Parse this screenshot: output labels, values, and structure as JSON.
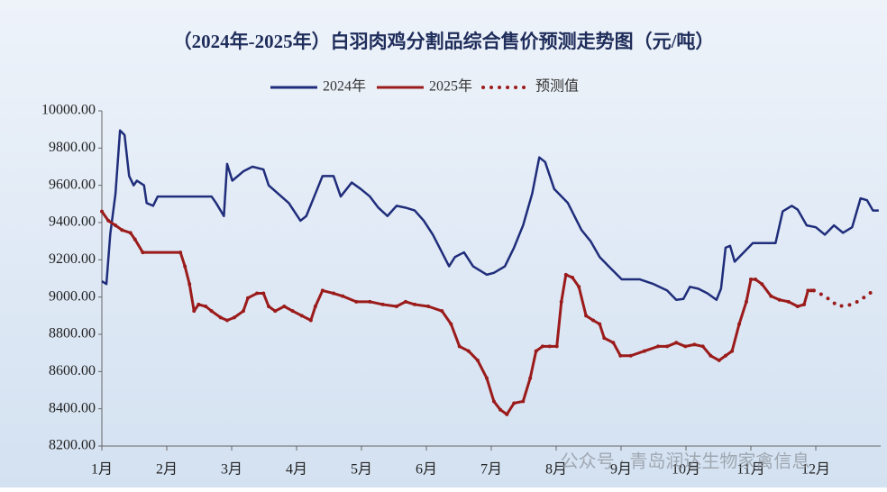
{
  "chart_data": {
    "type": "line",
    "title": "（2024年-2025年）白羽肉鸡分割品综合售价预测走势图（元/吨）",
    "watermark": "公众号 · 青岛润达生物家禽信息",
    "xlim": [
      1,
      13
    ],
    "xticks": [
      {
        "value": 1,
        "label": "1月"
      },
      {
        "value": 2,
        "label": "2月"
      },
      {
        "value": 3,
        "label": "3月"
      },
      {
        "value": 4,
        "label": "4月"
      },
      {
        "value": 5,
        "label": "5月"
      },
      {
        "value": 6,
        "label": "6月"
      },
      {
        "value": 7,
        "label": "7月"
      },
      {
        "value": 8,
        "label": "8月"
      },
      {
        "value": 9,
        "label": "9月"
      },
      {
        "value": 10,
        "label": "10月"
      },
      {
        "value": 11,
        "label": "11月"
      },
      {
        "value": 12,
        "label": "12月"
      }
    ],
    "ylim": [
      8200,
      10000
    ],
    "yticks": [
      {
        "value": 8200,
        "label": "8200.00"
      },
      {
        "value": 8400,
        "label": "8400.00"
      },
      {
        "value": 8600,
        "label": "8600.00"
      },
      {
        "value": 8800,
        "label": "8800.00"
      },
      {
        "value": 9000,
        "label": "9000.00"
      },
      {
        "value": 9200,
        "label": "9200.00"
      },
      {
        "value": 9400,
        "label": "9400.00"
      },
      {
        "value": 9600,
        "label": "9600.00"
      },
      {
        "value": 9800,
        "label": "9800.00"
      },
      {
        "value": 10000,
        "label": "10000.00"
      }
    ],
    "legend": "top",
    "series": [
      {
        "name": "2024年",
        "color": "#1f2d7b",
        "style": "solid",
        "x": [
          1.0,
          1.07,
          1.13,
          1.21,
          1.28,
          1.35,
          1.42,
          1.49,
          1.54,
          1.65,
          1.69,
          1.79,
          1.86,
          2.69,
          2.76,
          2.88,
          2.93,
          3.01,
          3.18,
          3.32,
          3.49,
          3.57,
          3.88,
          4.06,
          4.15,
          4.29,
          4.4,
          4.57,
          4.68,
          4.85,
          4.99,
          5.13,
          5.26,
          5.4,
          5.54,
          5.68,
          5.82,
          5.96,
          6.1,
          6.24,
          6.35,
          6.44,
          6.58,
          6.72,
          6.93,
          7.04,
          7.21,
          7.35,
          7.49,
          7.63,
          7.74,
          7.83,
          7.97,
          8.18,
          8.39,
          8.53,
          8.67,
          8.81,
          9.01,
          9.29,
          9.5,
          9.71,
          9.85,
          9.96,
          10.06,
          10.19,
          10.33,
          10.47,
          10.54,
          10.61,
          10.68,
          10.75,
          10.89,
          11.03,
          11.17,
          11.38,
          11.49,
          11.63,
          11.72,
          11.86,
          12.0,
          12.14,
          12.28,
          12.42,
          12.56,
          12.69,
          12.79,
          12.88,
          12.97
        ],
        "values": [
          9085,
          9070,
          9340,
          9555,
          9895,
          9870,
          9650,
          9600,
          9625,
          9600,
          9505,
          9490,
          9540,
          9540,
          9505,
          9435,
          9715,
          9625,
          9675,
          9700,
          9685,
          9600,
          9505,
          9410,
          9435,
          9555,
          9650,
          9650,
          9540,
          9615,
          9580,
          9540,
          9480,
          9435,
          9490,
          9480,
          9465,
          9410,
          9335,
          9240,
          9165,
          9215,
          9240,
          9165,
          9120,
          9130,
          9165,
          9265,
          9385,
          9555,
          9750,
          9725,
          9580,
          9505,
          9360,
          9300,
          9215,
          9165,
          9095,
          9095,
          9070,
          9035,
          8985,
          8990,
          9055,
          9045,
          9020,
          8985,
          9045,
          9265,
          9275,
          9190,
          9240,
          9290,
          9290,
          9290,
          9460,
          9490,
          9470,
          9385,
          9375,
          9335,
          9385,
          9345,
          9375,
          9530,
          9520,
          9465,
          9465
        ]
      },
      {
        "name": "2025年",
        "color": "#9b1b1b",
        "style": "solid",
        "x": [
          1.0,
          1.1,
          1.21,
          1.31,
          1.44,
          1.51,
          1.63,
          2.21,
          2.28,
          2.35,
          2.42,
          2.49,
          2.6,
          2.69,
          2.83,
          2.93,
          3.04,
          3.18,
          3.25,
          3.39,
          3.49,
          3.57,
          3.67,
          3.81,
          3.94,
          4.08,
          4.22,
          4.29,
          4.4,
          4.57,
          4.71,
          4.92,
          5.13,
          5.33,
          5.54,
          5.68,
          5.82,
          6.03,
          6.24,
          6.38,
          6.51,
          6.65,
          6.79,
          6.93,
          7.04,
          7.14,
          7.24,
          7.35,
          7.49,
          7.6,
          7.69,
          7.79,
          7.9,
          8.01,
          8.08,
          8.15,
          8.25,
          8.35,
          8.46,
          8.57,
          8.67,
          8.74,
          8.88,
          8.99,
          9.15,
          9.36,
          9.57,
          9.71,
          9.85,
          9.99,
          10.13,
          10.26,
          10.38,
          10.51,
          10.61,
          10.71,
          10.82,
          10.93,
          11.0,
          11.07,
          11.17,
          11.31,
          11.44,
          11.58,
          11.72,
          11.82,
          11.88,
          11.93,
          11.97
        ],
        "values": [
          9460,
          9410,
          9385,
          9360,
          9345,
          9310,
          9240,
          9240,
          9165,
          9070,
          8925,
          8960,
          8950,
          8925,
          8890,
          8875,
          8890,
          8925,
          8995,
          9020,
          9020,
          8950,
          8925,
          8950,
          8925,
          8900,
          8875,
          8950,
          9035,
          9020,
          9005,
          8975,
          8975,
          8960,
          8950,
          8975,
          8960,
          8950,
          8925,
          8855,
          8735,
          8710,
          8660,
          8565,
          8440,
          8395,
          8370,
          8430,
          8440,
          8565,
          8710,
          8735,
          8735,
          8735,
          8975,
          9120,
          9105,
          9055,
          8900,
          8875,
          8855,
          8780,
          8755,
          8685,
          8685,
          8710,
          8735,
          8735,
          8755,
          8735,
          8745,
          8735,
          8685,
          8660,
          8685,
          8710,
          8855,
          8975,
          9095,
          9095,
          9070,
          9005,
          8985,
          8975,
          8950,
          8960,
          9035,
          9035,
          9035
        ]
      },
      {
        "name": "预测值",
        "color": "#9b1b1b",
        "style": "dotted",
        "x": [
          11.97,
          12.14,
          12.35,
          12.56,
          12.69,
          12.83,
          12.93
        ],
        "values": [
          9035,
          9005,
          8950,
          8960,
          8985,
          9020,
          9045
        ]
      }
    ]
  }
}
